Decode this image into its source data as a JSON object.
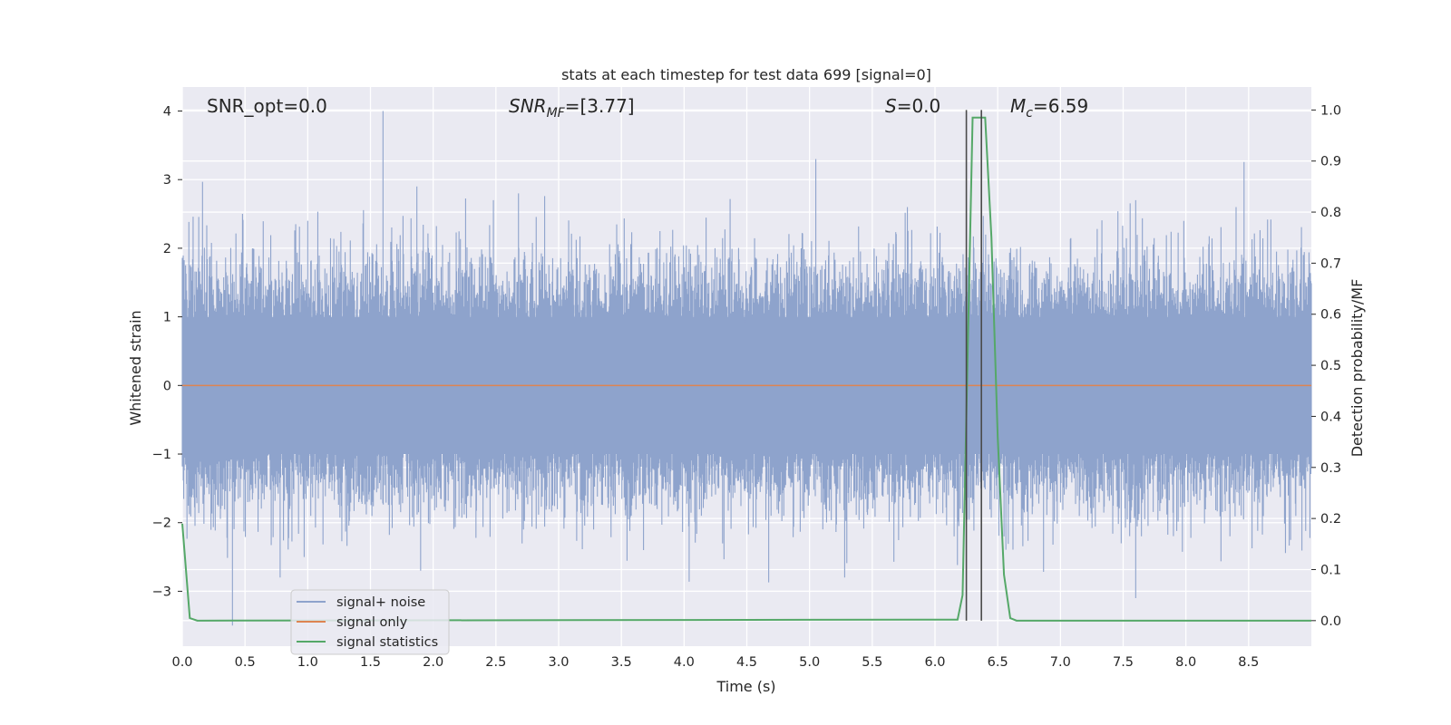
{
  "chart_data": {
    "type": "line",
    "title": "stats at each timestep for test data 699 [signal=0]",
    "xlabel": "Time (s)",
    "ylabel_left": "Whitened strain",
    "ylabel_right": "Detection probability/MF",
    "xlim": [
      0.0,
      9.0
    ],
    "ylim_left": [
      -3.8,
      4.35
    ],
    "ylim_right": [
      -0.05,
      1.045
    ],
    "x_ticks": [
      "0.0",
      "0.5",
      "1.0",
      "1.5",
      "2.0",
      "2.5",
      "3.0",
      "3.5",
      "4.0",
      "4.5",
      "5.0",
      "5.5",
      "6.0",
      "6.5",
      "7.0",
      "7.5",
      "8.0",
      "8.5"
    ],
    "y_ticks_left": [
      "−3",
      "−2",
      "−1",
      "0",
      "1",
      "2",
      "3",
      "4"
    ],
    "y_ticks_right": [
      "0.0",
      "0.1",
      "0.2",
      "0.3",
      "0.4",
      "0.5",
      "0.6",
      "0.7",
      "0.8",
      "0.9",
      "1.0"
    ],
    "grid": true,
    "legend_position": "lower-left",
    "annotations": {
      "snr_opt": "SNR_opt=0.0",
      "snr_mf_main": "SNR",
      "snr_mf_sub": "MF",
      "snr_mf_value": "=[3.77]",
      "s_main": "S",
      "s_value": "=0.0",
      "mc_main": "M",
      "mc_sub": "c",
      "mc_value": "=6.59"
    },
    "series": [
      {
        "name": "signal+ noise",
        "color": "#8ea3cc",
        "description_of_noise": "whitened Gaussian noise, roughly within ±1.5 with peaks near 4.0 at x=1.6 and 3.3 at x=5.05",
        "peaks": [
          {
            "x": 0.48,
            "y": 2.5
          },
          {
            "x": 1.6,
            "y": 4.0
          },
          {
            "x": 1.0,
            "y": 2.4
          },
          {
            "x": 1.87,
            "y": 2.9
          },
          {
            "x": 2.48,
            "y": 2.7
          },
          {
            "x": 2.68,
            "y": 2.8
          },
          {
            "x": 5.05,
            "y": 3.3
          },
          {
            "x": 5.78,
            "y": 2.6
          },
          {
            "x": 8.4,
            "y": 2.6
          },
          {
            "x": 7.6,
            "y": 2.7
          },
          {
            "x": 0.4,
            "y": -3.5
          },
          {
            "x": 7.6,
            "y": -3.1
          },
          {
            "x": 0.78,
            "y": -2.8
          },
          {
            "x": 5.28,
            "y": -2.8
          },
          {
            "x": 1.9,
            "y": -2.7
          }
        ]
      },
      {
        "name": "signal only",
        "color": "#dd8452",
        "x": [
          0.0,
          9.0
        ],
        "y": [
          0.0,
          0.0
        ]
      },
      {
        "name": "signal statistics",
        "color": "#55a868",
        "axis": "right",
        "x": [
          0.0,
          0.06,
          0.12,
          6.18,
          6.22,
          6.3,
          6.35,
          6.4,
          6.45,
          6.5,
          6.55,
          6.6,
          6.65,
          9.0
        ],
        "y": [
          0.19,
          0.005,
          0.0,
          0.002,
          0.05,
          0.985,
          0.985,
          0.985,
          0.75,
          0.36,
          0.09,
          0.005,
          0.0,
          0.0
        ]
      }
    ],
    "vertical_lines": [
      6.25,
      6.37
    ]
  },
  "colors": {
    "plot_background": "#eaeaf2",
    "grid": "#ffffff",
    "vline": "#4a4a4a"
  }
}
